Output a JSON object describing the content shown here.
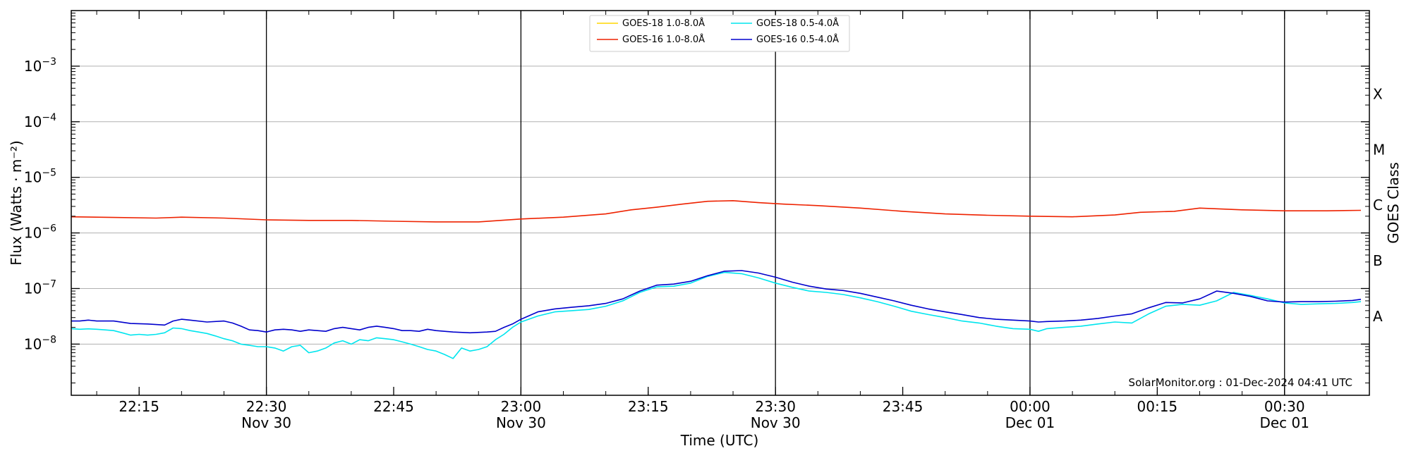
{
  "chart_data": {
    "type": "line",
    "title": "",
    "xlabel": "Time (UTC)",
    "ylabel": "Flux (Watts · m⁻²)",
    "y2label": "GOES Class",
    "yscale": "log",
    "ylim": [
      1.2e-09,
      0.01
    ],
    "xlim": [
      "2024-11-30T22:07",
      "2024-12-01T00:40"
    ],
    "grid": "horizontal at decades",
    "legend_position": "top-center",
    "x_ticks": [
      {
        "t": "2024-11-30T22:15",
        "line1": "22:15",
        "line2": ""
      },
      {
        "t": "2024-11-30T22:30",
        "line1": "22:30",
        "line2": "Nov 30"
      },
      {
        "t": "2024-11-30T22:45",
        "line1": "22:45",
        "line2": ""
      },
      {
        "t": "2024-11-30T23:00",
        "line1": "23:00",
        "line2": "Nov 30"
      },
      {
        "t": "2024-11-30T23:15",
        "line1": "23:15",
        "line2": ""
      },
      {
        "t": "2024-11-30T23:30",
        "line1": "23:30",
        "line2": "Nov 30"
      },
      {
        "t": "2024-11-30T23:45",
        "line1": "23:45",
        "line2": ""
      },
      {
        "t": "2024-12-01T00:00",
        "line1": "00:00",
        "line2": "Dec 01"
      },
      {
        "t": "2024-12-01T00:15",
        "line1": "00:15",
        "line2": ""
      },
      {
        "t": "2024-12-01T00:30",
        "line1": "00:30",
        "line2": "Dec 01"
      }
    ],
    "y_ticks": [
      {
        "value": 1e-08,
        "exp": "−8"
      },
      {
        "value": 1e-07,
        "exp": "−7"
      },
      {
        "value": 1e-06,
        "exp": "−6"
      },
      {
        "value": 1e-05,
        "exp": "−5"
      },
      {
        "value": 0.0001,
        "exp": "−4"
      },
      {
        "value": 0.001,
        "exp": "−3"
      }
    ],
    "vertical_lines": [
      "2024-11-30T22:30",
      "2024-11-30T23:00",
      "2024-11-30T23:30",
      "2024-12-01T00:00",
      "2024-12-01T00:30"
    ],
    "goes_classes": [
      {
        "label": "X",
        "value": 0.000316
      },
      {
        "label": "M",
        "value": 3.16e-05
      },
      {
        "label": "C",
        "value": 3.16e-06
      },
      {
        "label": "B",
        "value": 3.16e-07
      },
      {
        "label": "A",
        "value": 3.16e-08
      }
    ],
    "annotation": "SolarMonitor.org : 01-Dec-2024 04:41 UTC",
    "series": [
      {
        "name": "GOES-18 1.0-8.0Å",
        "color": "#ffd700",
        "x": [],
        "y": []
      },
      {
        "name": "GOES-18 0.5-4.0Å",
        "color": "#00e5ee",
        "x": [
          "2024-11-30T22:07",
          "2024-11-30T22:08",
          "2024-11-30T22:09",
          "2024-11-30T22:10",
          "2024-11-30T22:11",
          "2024-11-30T22:12",
          "2024-11-30T22:13",
          "2024-11-30T22:14",
          "2024-11-30T22:15",
          "2024-11-30T22:16",
          "2024-11-30T22:17",
          "2024-11-30T22:18",
          "2024-11-30T22:19",
          "2024-11-30T22:20",
          "2024-11-30T22:21",
          "2024-11-30T22:22",
          "2024-11-30T22:23",
          "2024-11-30T22:24",
          "2024-11-30T22:25",
          "2024-11-30T22:26",
          "2024-11-30T22:27",
          "2024-11-30T22:28",
          "2024-11-30T22:29",
          "2024-11-30T22:30",
          "2024-11-30T22:31",
          "2024-11-30T22:32",
          "2024-11-30T22:33",
          "2024-11-30T22:34",
          "2024-11-30T22:35",
          "2024-11-30T22:36",
          "2024-11-30T22:37",
          "2024-11-30T22:38",
          "2024-11-30T22:39",
          "2024-11-30T22:40",
          "2024-11-30T22:41",
          "2024-11-30T22:42",
          "2024-11-30T22:43",
          "2024-11-30T22:44",
          "2024-11-30T22:45",
          "2024-11-30T22:46",
          "2024-11-30T22:47",
          "2024-11-30T22:48",
          "2024-11-30T22:49",
          "2024-11-30T22:50",
          "2024-11-30T22:51",
          "2024-11-30T22:52",
          "2024-11-30T22:53",
          "2024-11-30T22:54",
          "2024-11-30T22:55",
          "2024-11-30T22:56",
          "2024-11-30T22:57",
          "2024-11-30T22:58",
          "2024-11-30T22:59",
          "2024-11-30T23:00",
          "2024-11-30T23:02",
          "2024-11-30T23:04",
          "2024-11-30T23:06",
          "2024-11-30T23:08",
          "2024-11-30T23:10",
          "2024-11-30T23:12",
          "2024-11-30T23:14",
          "2024-11-30T23:16",
          "2024-11-30T23:18",
          "2024-11-30T23:20",
          "2024-11-30T23:22",
          "2024-11-30T23:24",
          "2024-11-30T23:26",
          "2024-11-30T23:28",
          "2024-11-30T23:30",
          "2024-11-30T23:32",
          "2024-11-30T23:34",
          "2024-11-30T23:36",
          "2024-11-30T23:38",
          "2024-11-30T23:40",
          "2024-11-30T23:42",
          "2024-11-30T23:44",
          "2024-11-30T23:46",
          "2024-11-30T23:48",
          "2024-11-30T23:50",
          "2024-11-30T23:52",
          "2024-11-30T23:54",
          "2024-11-30T23:56",
          "2024-11-30T23:58",
          "2024-12-01T00:00",
          "2024-12-01T00:01",
          "2024-12-01T00:02",
          "2024-12-01T00:04",
          "2024-12-01T00:06",
          "2024-12-01T00:08",
          "2024-12-01T00:10",
          "2024-12-01T00:12",
          "2024-12-01T00:14",
          "2024-12-01T00:16",
          "2024-12-01T00:18",
          "2024-12-01T00:20",
          "2024-12-01T00:22",
          "2024-12-01T00:24",
          "2024-12-01T00:26",
          "2024-12-01T00:28",
          "2024-12-01T00:30",
          "2024-12-01T00:32",
          "2024-12-01T00:34",
          "2024-12-01T00:36",
          "2024-12-01T00:38",
          "2024-12-01T00:39"
        ],
        "y": [
          1.9e-08,
          1.85e-08,
          1.88e-08,
          1.85e-08,
          1.8e-08,
          1.75e-08,
          1.6e-08,
          1.45e-08,
          1.5e-08,
          1.45e-08,
          1.5e-08,
          1.6e-08,
          1.95e-08,
          1.9e-08,
          1.75e-08,
          1.65e-08,
          1.55e-08,
          1.4e-08,
          1.25e-08,
          1.15e-08,
          1e-08,
          9.5e-09,
          9e-09,
          9e-09,
          8.5e-09,
          7.5e-09,
          9e-09,
          9.5e-09,
          7e-09,
          7.5e-09,
          8.5e-09,
          1.05e-08,
          1.15e-08,
          1e-08,
          1.2e-08,
          1.15e-08,
          1.3e-08,
          1.25e-08,
          1.2e-08,
          1.1e-08,
          1e-08,
          9e-09,
          8e-09,
          7.5e-09,
          6.5e-09,
          5.5e-09,
          8.5e-09,
          7.5e-09,
          8e-09,
          9e-09,
          1.2e-08,
          1.5e-08,
          2e-08,
          2.5e-08,
          3.2e-08,
          3.8e-08,
          4e-08,
          4.2e-08,
          4.8e-08,
          6e-08,
          8.5e-08,
          1.07e-07,
          1.1e-07,
          1.25e-07,
          1.65e-07,
          1.95e-07,
          1.85e-07,
          1.55e-07,
          1.25e-07,
          1.05e-07,
          9e-08,
          8.5e-08,
          7.8e-08,
          6.8e-08,
          5.8e-08,
          4.8e-08,
          3.9e-08,
          3.4e-08,
          3e-08,
          2.6e-08,
          2.4e-08,
          2.1e-08,
          1.9e-08,
          1.85e-08,
          1.7e-08,
          1.9e-08,
          2e-08,
          2.1e-08,
          2.3e-08,
          2.5e-08,
          2.4e-08,
          3.5e-08,
          4.8e-08,
          5.2e-08,
          5e-08,
          6e-08,
          8.5e-08,
          7.5e-08,
          6.5e-08,
          5.5e-08,
          5.2e-08,
          5.3e-08,
          5.4e-08,
          5.6e-08,
          5.8e-08
        ]
      },
      {
        "name": "GOES-16 1.0-8.0Å",
        "color": "#ee2200",
        "x": [
          "2024-11-30T22:07",
          "2024-11-30T22:12",
          "2024-11-30T22:17",
          "2024-11-30T22:20",
          "2024-11-30T22:25",
          "2024-11-30T22:30",
          "2024-11-30T22:35",
          "2024-11-30T22:40",
          "2024-11-30T22:45",
          "2024-11-30T22:50",
          "2024-11-30T22:55",
          "2024-11-30T23:00",
          "2024-11-30T23:05",
          "2024-11-30T23:10",
          "2024-11-30T23:13",
          "2024-11-30T23:16",
          "2024-11-30T23:19",
          "2024-11-30T23:22",
          "2024-11-30T23:25",
          "2024-11-30T23:28",
          "2024-11-30T23:31",
          "2024-11-30T23:35",
          "2024-11-30T23:40",
          "2024-11-30T23:45",
          "2024-11-30T23:50",
          "2024-11-30T23:55",
          "2024-12-01T00:00",
          "2024-12-01T00:05",
          "2024-12-01T00:10",
          "2024-12-01T00:13",
          "2024-12-01T00:17",
          "2024-12-01T00:20",
          "2024-12-01T00:25",
          "2024-12-01T00:30",
          "2024-12-01T00:35",
          "2024-12-01T00:39"
        ],
        "y": [
          1.95e-06,
          1.9e-06,
          1.85e-06,
          1.92e-06,
          1.85e-06,
          1.72e-06,
          1.68e-06,
          1.68e-06,
          1.62e-06,
          1.58e-06,
          1.58e-06,
          1.78e-06,
          1.92e-06,
          2.2e-06,
          2.6e-06,
          2.9e-06,
          3.3e-06,
          3.7e-06,
          3.8e-06,
          3.5e-06,
          3.3e-06,
          3.1e-06,
          2.8e-06,
          2.45e-06,
          2.2e-06,
          2.08e-06,
          2e-06,
          1.95e-06,
          2.1e-06,
          2.35e-06,
          2.45e-06,
          2.8e-06,
          2.6e-06,
          2.5e-06,
          2.5e-06,
          2.55e-06
        ]
      },
      {
        "name": "GOES-16 0.5-4.0Å",
        "color": "#0000cd",
        "x": [
          "2024-11-30T22:07",
          "2024-11-30T22:08",
          "2024-11-30T22:09",
          "2024-11-30T22:10",
          "2024-11-30T22:12",
          "2024-11-30T22:14",
          "2024-11-30T22:16",
          "2024-11-30T22:18",
          "2024-11-30T22:19",
          "2024-11-30T22:20",
          "2024-11-30T22:21",
          "2024-11-30T22:23",
          "2024-11-30T22:25",
          "2024-11-30T22:26",
          "2024-11-30T22:27",
          "2024-11-30T22:28",
          "2024-11-30T22:29",
          "2024-11-30T22:30",
          "2024-11-30T22:31",
          "2024-11-30T22:32",
          "2024-11-30T22:33",
          "2024-11-30T22:34",
          "2024-11-30T22:35",
          "2024-11-30T22:36",
          "2024-11-30T22:37",
          "2024-11-30T22:38",
          "2024-11-30T22:39",
          "2024-11-30T22:40",
          "2024-11-30T22:41",
          "2024-11-30T22:42",
          "2024-11-30T22:43",
          "2024-11-30T22:44",
          "2024-11-30T22:45",
          "2024-11-30T22:46",
          "2024-11-30T22:47",
          "2024-11-30T22:48",
          "2024-11-30T22:49",
          "2024-11-30T22:50",
          "2024-11-30T22:52",
          "2024-11-30T22:54",
          "2024-11-30T22:56",
          "2024-11-30T22:57",
          "2024-11-30T22:58",
          "2024-11-30T22:59",
          "2024-11-30T23:00",
          "2024-11-30T23:02",
          "2024-11-30T23:04",
          "2024-11-30T23:06",
          "2024-11-30T23:08",
          "2024-11-30T23:10",
          "2024-11-30T23:12",
          "2024-11-30T23:14",
          "2024-11-30T23:16",
          "2024-11-30T23:18",
          "2024-11-30T23:20",
          "2024-11-30T23:22",
          "2024-11-30T23:24",
          "2024-11-30T23:26",
          "2024-11-30T23:28",
          "2024-11-30T23:30",
          "2024-11-30T23:32",
          "2024-11-30T23:34",
          "2024-11-30T23:36",
          "2024-11-30T23:38",
          "2024-11-30T23:40",
          "2024-11-30T23:42",
          "2024-11-30T23:44",
          "2024-11-30T23:46",
          "2024-11-30T23:48",
          "2024-11-30T23:50",
          "2024-11-30T23:52",
          "2024-11-30T23:54",
          "2024-11-30T23:56",
          "2024-11-30T23:58",
          "2024-12-01T00:00",
          "2024-12-01T00:01",
          "2024-12-01T00:02",
          "2024-12-01T00:04",
          "2024-12-01T00:06",
          "2024-12-01T00:08",
          "2024-12-01T00:10",
          "2024-12-01T00:12",
          "2024-12-01T00:14",
          "2024-12-01T00:16",
          "2024-12-01T00:18",
          "2024-12-01T00:20",
          "2024-12-01T00:22",
          "2024-12-01T00:24",
          "2024-12-01T00:26",
          "2024-12-01T00:28",
          "2024-12-01T00:30",
          "2024-12-01T00:32",
          "2024-12-01T00:34",
          "2024-12-01T00:36",
          "2024-12-01T00:38",
          "2024-12-01T00:39"
        ],
        "y": [
          2.6e-08,
          2.6e-08,
          2.7e-08,
          2.6e-08,
          2.6e-08,
          2.35e-08,
          2.3e-08,
          2.2e-08,
          2.6e-08,
          2.8e-08,
          2.7e-08,
          2.5e-08,
          2.6e-08,
          2.4e-08,
          2.1e-08,
          1.8e-08,
          1.75e-08,
          1.65e-08,
          1.8e-08,
          1.85e-08,
          1.8e-08,
          1.7e-08,
          1.8e-08,
          1.75e-08,
          1.7e-08,
          1.9e-08,
          2e-08,
          1.9e-08,
          1.8e-08,
          2e-08,
          2.1e-08,
          2e-08,
          1.9e-08,
          1.75e-08,
          1.75e-08,
          1.7e-08,
          1.85e-08,
          1.75e-08,
          1.65e-08,
          1.6e-08,
          1.65e-08,
          1.7e-08,
          2e-08,
          2.3e-08,
          2.8e-08,
          3.8e-08,
          4.3e-08,
          4.6e-08,
          4.9e-08,
          5.4e-08,
          6.5e-08,
          9e-08,
          1.15e-07,
          1.2e-07,
          1.35e-07,
          1.7e-07,
          2.05e-07,
          2.1e-07,
          1.9e-07,
          1.6e-07,
          1.3e-07,
          1.1e-07,
          9.8e-08,
          9.2e-08,
          8.2e-08,
          7e-08,
          6e-08,
          5e-08,
          4.3e-08,
          3.8e-08,
          3.4e-08,
          3e-08,
          2.8e-08,
          2.7e-08,
          2.6e-08,
          2.5e-08,
          2.55e-08,
          2.6e-08,
          2.7e-08,
          2.9e-08,
          3.2e-08,
          3.5e-08,
          4.5e-08,
          5.6e-08,
          5.5e-08,
          6.5e-08,
          9e-08,
          8.2e-08,
          7.2e-08,
          6e-08,
          5.7e-08,
          5.8e-08,
          5.8e-08,
          5.9e-08,
          6.1e-08,
          6.4e-08
        ]
      }
    ]
  }
}
